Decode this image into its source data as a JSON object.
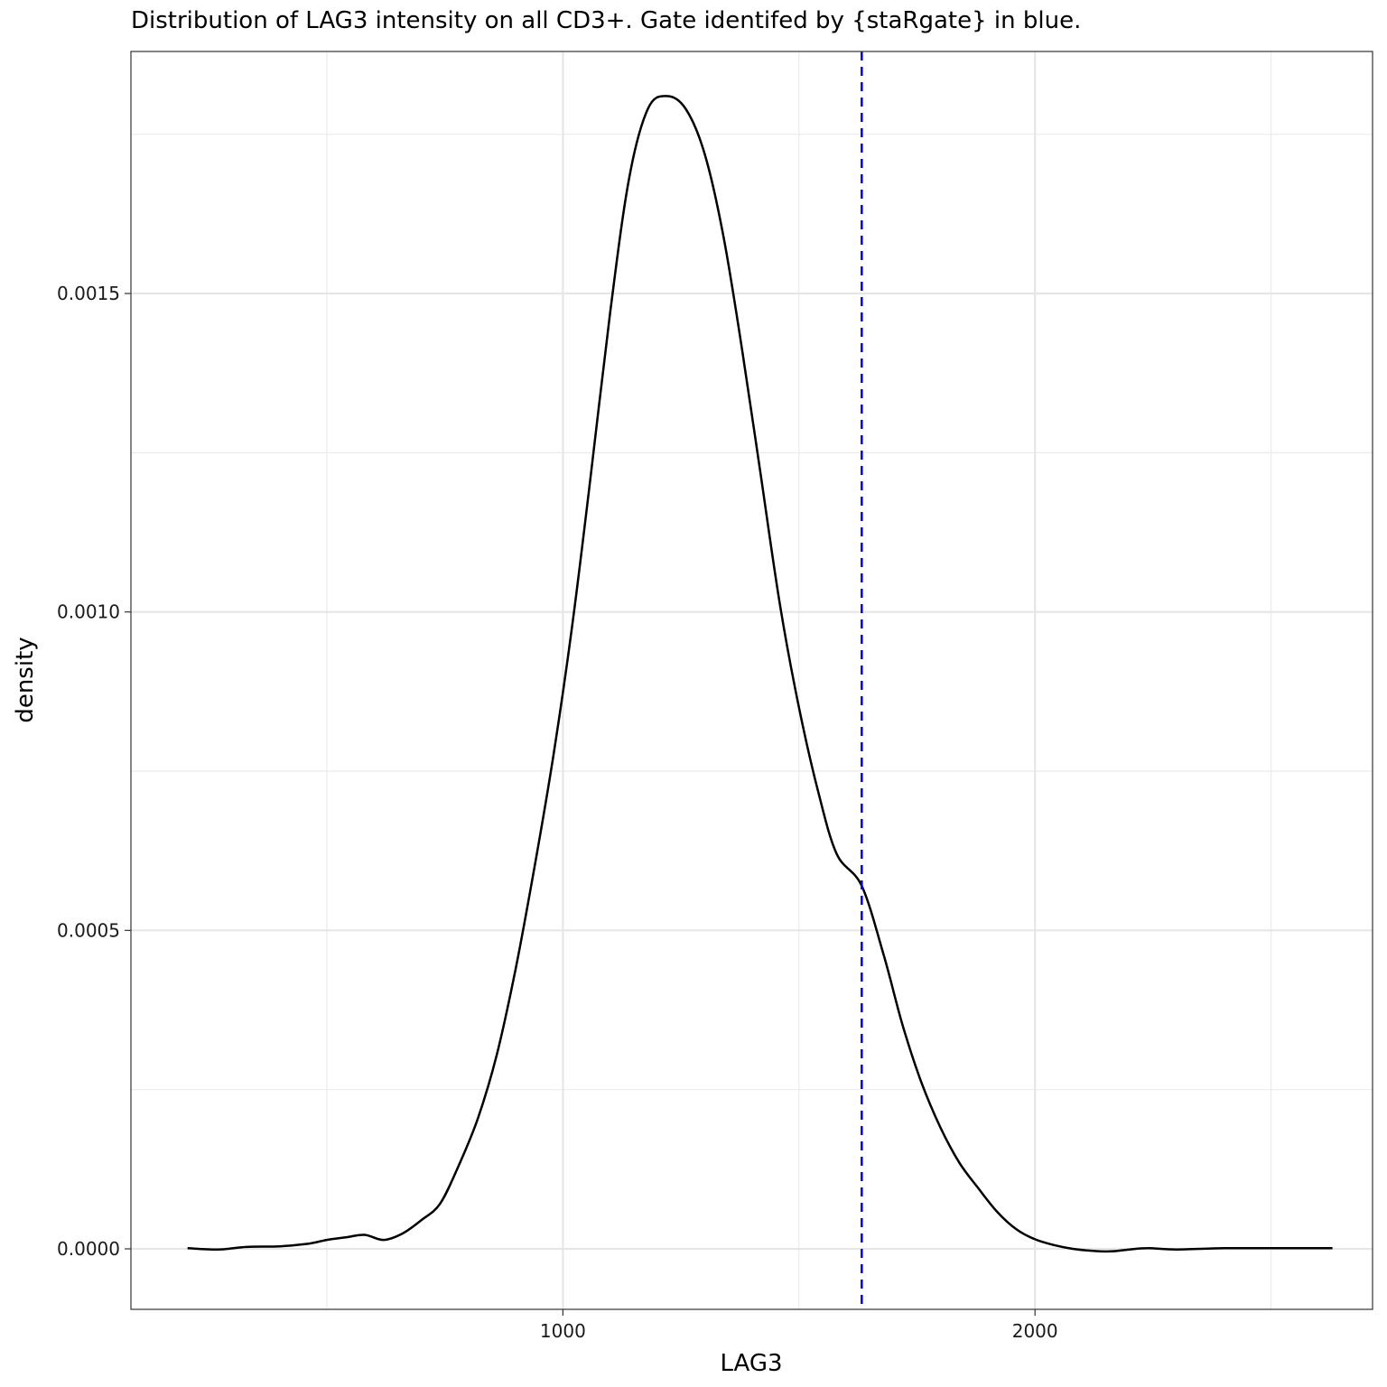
{
  "chart_data": {
    "type": "line",
    "title": "Distribution of LAG3 intensity on all CD3+. Gate identifed by {staRgate} in blue.",
    "xlabel": "LAG3",
    "ylabel": "density",
    "xlim": [
      85,
      2715
    ],
    "ylim": [
      -9.5e-05,
      0.00188
    ],
    "x_ticks": [
      1000,
      2000
    ],
    "x_minor_ticks": [
      500,
      1500,
      2500
    ],
    "y_ticks": [
      0.0,
      0.0005,
      0.001,
      0.0015
    ],
    "y_tick_labels": [
      "0.0000",
      "0.0005",
      "0.0010",
      "0.0015"
    ],
    "y_minor_ticks": [
      0.00025,
      0.00075,
      0.00125,
      0.00175
    ],
    "grid": true,
    "line_color": "#000000",
    "gate": {
      "x": 1633,
      "color": "#0000ff",
      "style": "dashed"
    },
    "series": [
      {
        "x": [
          205,
          270,
          330,
          400,
          460,
          500,
          540,
          580,
          620,
          660,
          700,
          740,
          780,
          820,
          860,
          900,
          940,
          980,
          1020,
          1060,
          1100,
          1140,
          1180,
          1220,
          1260,
          1300,
          1340,
          1380,
          1420,
          1460,
          1500,
          1540,
          1580,
          1633,
          1680,
          1720,
          1760,
          1800,
          1840,
          1880,
          1920,
          1960,
          2000,
          2040,
          2080,
          2120,
          2160,
          2200,
          2240,
          2300,
          2400,
          2500,
          2600,
          2630
        ],
        "y": [
          1e-06,
          -1e-06,
          3e-06,
          4e-06,
          8e-06,
          1.4e-05,
          1.8e-05,
          2.2e-05,
          1.4e-05,
          2.4e-05,
          4.5e-05,
          7.1e-05,
          0.000132,
          0.000205,
          0.000305,
          0.00044,
          0.0006,
          0.000775,
          0.00098,
          0.00122,
          0.00147,
          0.00168,
          0.00179,
          0.00181,
          0.00179,
          0.00172,
          0.00159,
          0.00141,
          0.00121,
          0.00101,
          0.00085,
          0.00072,
          0.00062,
          0.00057,
          0.00046,
          0.00035,
          0.00026,
          0.00019,
          0.000135,
          9.5e-05,
          5.8e-05,
          3.1e-05,
          1.5e-05,
          6e-06,
          -0.0,
          -3e-06,
          -4e-06,
          -1e-06,
          1e-06,
          -1e-06,
          1e-06,
          1e-06,
          1e-06,
          1e-06
        ]
      }
    ]
  }
}
